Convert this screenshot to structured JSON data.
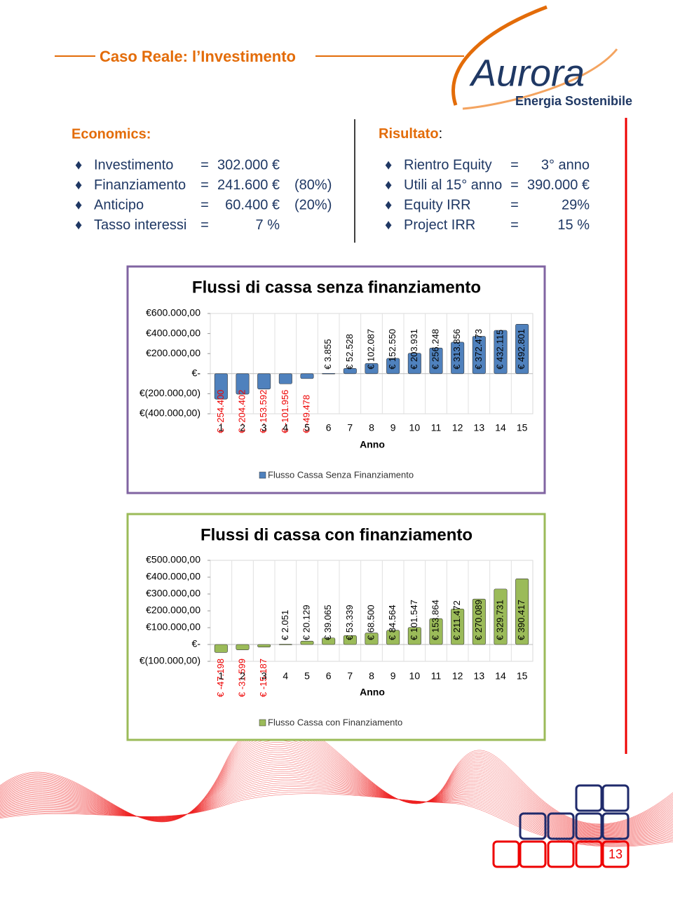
{
  "header": {
    "title": "Caso Reale: l’Investimento",
    "logo": "Aurora",
    "logo_tagline": "Energia Sostenibile"
  },
  "economics": {
    "heading": "Economics:",
    "rows": [
      {
        "label": "Investimento",
        "eq": "=",
        "value": "302.000 €"
      },
      {
        "label": "Finanziamento",
        "eq": "=",
        "value": "241.600 €",
        "share": "(80%)"
      },
      {
        "label": "Anticipo",
        "eq": "=",
        "value": "60.400 €",
        "share": "(20%)"
      },
      {
        "label": "Tasso interessi",
        "eq": "=",
        "value": "7 %"
      }
    ]
  },
  "risultato": {
    "heading": "Risultato",
    "colon": ":",
    "rows": [
      {
        "label": "Rientro Equity",
        "eq": "=",
        "value": "3° anno"
      },
      {
        "label": "Utili al 15° anno",
        "eq": "=",
        "value": "390.000 €"
      },
      {
        "label": "Equity IRR",
        "eq": "=",
        "value": "29%"
      },
      {
        "label": "Project IRR",
        "eq": "=",
        "value": "15 %"
      }
    ]
  },
  "chart_data": [
    {
      "type": "bar",
      "title": "Flussi di cassa senza finanziamento",
      "x_label": "Anno",
      "categories": [
        1,
        2,
        3,
        4,
        5,
        6,
        7,
        8,
        9,
        10,
        11,
        12,
        13,
        14,
        15
      ],
      "series": [
        {
          "name": "Flusso Cassa Senza Finanziamento",
          "color": "#4f81bd",
          "values": [
            -254400,
            -204402,
            -153592,
            -101956,
            -49478,
            3855,
            52528,
            102087,
            152550,
            203931,
            256248,
            313856,
            372473,
            432115,
            492801
          ],
          "value_labels": [
            "€ -254.400",
            "€ -204.402",
            "€ -153.592",
            "€ -101.956",
            "€ -49.478",
            "€ 3.855",
            "€ 52.528",
            "€ 102.087",
            "€ 152.550",
            "€ 203.931",
            "€ 256.248",
            "€ 313.856",
            "€ 372.473",
            "€ 432.115",
            "€ 492.801"
          ]
        }
      ],
      "ylim": [
        -400000,
        600000
      ],
      "yticks": [
        {
          "value": 600000,
          "label": "€600.000,00"
        },
        {
          "value": 400000,
          "label": "€400.000,00"
        },
        {
          "value": 200000,
          "label": "€200.000,00"
        },
        {
          "value": 0,
          "label": "€-"
        },
        {
          "value": -200000,
          "label": "€(200.000,00)"
        },
        {
          "value": -400000,
          "label": "€(400.000,00)"
        }
      ],
      "border_color": "#8064a2"
    },
    {
      "type": "bar",
      "title": "Flussi di cassa con finanziamento",
      "x_label": "Anno",
      "categories": [
        1,
        2,
        3,
        4,
        5,
        6,
        7,
        8,
        9,
        10,
        11,
        12,
        13,
        14,
        15
      ],
      "series": [
        {
          "name": "Flusso Cassa con Finanziamento",
          "color": "#9bbb59",
          "values": [
            -47198,
            -31599,
            -15187,
            2051,
            20129,
            39065,
            53339,
            68500,
            84564,
            101547,
            153864,
            211472,
            270089,
            329731,
            390417
          ],
          "value_labels": [
            "€ -47.198",
            "€ -31.599",
            "€ -15.187",
            "€ 2.051",
            "€ 20.129",
            "€ 39.065",
            "€ 53.339",
            "€ 68.500",
            "€ 84.564",
            "€ 101.547",
            "€ 153.864",
            "€ 211.472",
            "€ 270.089",
            "€ 329.731",
            "€ 390.417"
          ]
        }
      ],
      "ylim": [
        -100000,
        500000
      ],
      "yticks": [
        {
          "value": 500000,
          "label": "€500.000,00"
        },
        {
          "value": 400000,
          "label": "€400.000,00"
        },
        {
          "value": 300000,
          "label": "€300.000,00"
        },
        {
          "value": 200000,
          "label": "€200.000,00"
        },
        {
          "value": 100000,
          "label": "€100.000,00"
        },
        {
          "value": 0,
          "label": "€-"
        },
        {
          "value": -100000,
          "label": "€(100.000,00)"
        }
      ],
      "border_color": "#9bbb59"
    }
  ],
  "footer": {
    "page": "13"
  }
}
